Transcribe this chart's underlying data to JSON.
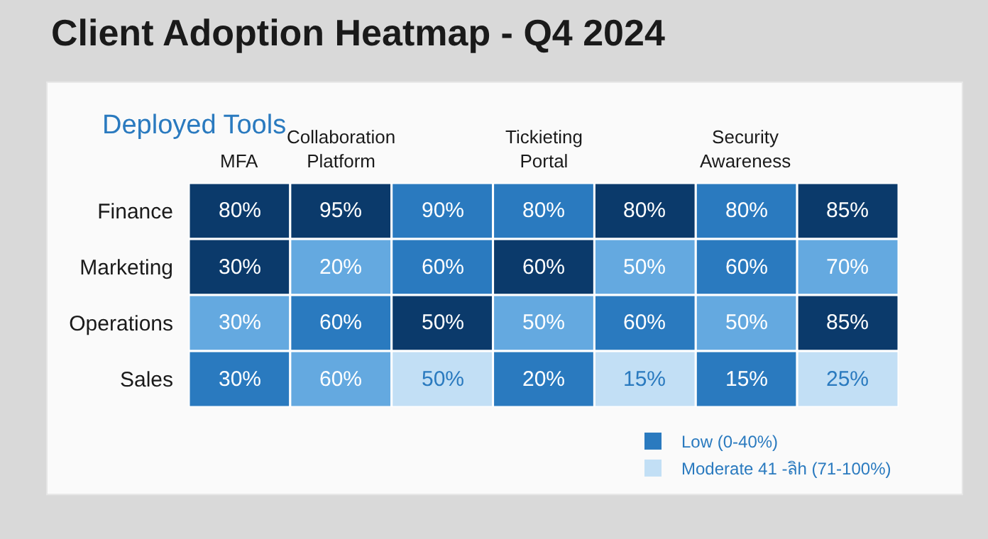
{
  "chart_data": {
    "type": "heatmap",
    "title": "Client Adoption Heatmap - Q4 2024",
    "subtitle": "Deployed Tools",
    "categories": [
      "MFA",
      "Collaboration Platform",
      null,
      "Tickieting Portal",
      null,
      "Security Awareness",
      null
    ],
    "y_categories": [
      "Finance",
      "Marketing",
      "Operations",
      "Sales"
    ],
    "cells": [
      [
        80,
        95,
        90,
        80,
        80,
        80,
        85
      ],
      [
        30,
        20,
        60,
        60,
        50,
        60,
        70
      ],
      [
        30,
        60,
        50,
        50,
        60,
        50,
        85
      ],
      [
        30,
        60,
        50,
        20,
        15,
        15,
        25
      ]
    ],
    "cell_labels": [
      [
        "80%",
        "95%",
        "90%",
        "80%",
        "80%",
        "80%",
        "85%"
      ],
      [
        "30%",
        "20%",
        "60%",
        "60%",
        "50%",
        "60%",
        "70%"
      ],
      [
        "30%",
        "60%",
        "50%",
        "50%",
        "60%",
        "50%",
        "85%"
      ],
      [
        "30%",
        "60%",
        "50%",
        "20%",
        "15%",
        "15%",
        "25%"
      ]
    ],
    "colors": [
      [
        "#0b3a6b",
        "#0b3a6b",
        "#2a7abf",
        "#2a7abf",
        "#0b3a6b",
        "#2a7abf",
        "#0b3a6b"
      ],
      [
        "#0b3a6b",
        "#64a9e0",
        "#2a7abf",
        "#0b3a6b",
        "#64a9e0",
        "#2a7abf",
        "#64a9e0"
      ],
      [
        "#64a9e0",
        "#2a7abf",
        "#0b3a6b",
        "#64a9e0",
        "#2a7abf",
        "#64a9e0",
        "#0b3a6b"
      ],
      [
        "#2a7abf",
        "#64a9e0",
        "#c2dff5",
        "#2a7abf",
        "#c2dff5",
        "#2a7abf",
        "#c2dff5"
      ]
    ],
    "series": [
      {
        "name": "Low (0-40%)",
        "color": "#2a7abf",
        "values": [
          null,
          null,
          null,
          null,
          null,
          null,
          null
        ]
      },
      {
        "name": "Moderate 41 -ลิh (71-100%)",
        "color": "#c2dff5",
        "values": [
          null,
          null,
          null,
          null,
          null,
          null,
          null
        ]
      }
    ],
    "legend": "bottom right"
  }
}
